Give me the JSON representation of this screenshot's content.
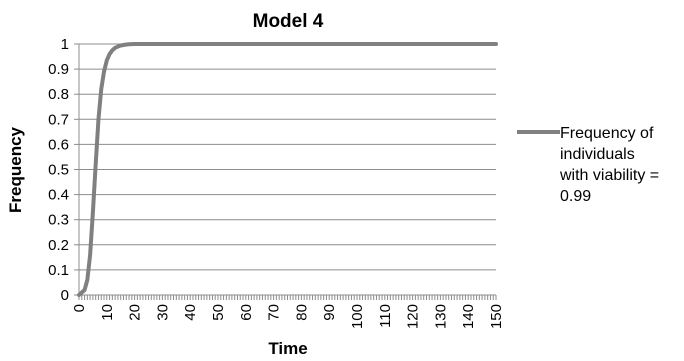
{
  "chart_data": {
    "type": "line",
    "title": "Model 4",
    "xlabel": "Time",
    "ylabel": "Frequency",
    "xlim": [
      0,
      150
    ],
    "ylim": [
      0,
      1
    ],
    "x_ticks": [
      "0",
      "10",
      "20",
      "30",
      "40",
      "50",
      "60",
      "70",
      "80",
      "90",
      "100",
      "110",
      "120",
      "130",
      "140",
      "150"
    ],
    "y_ticks": [
      "0",
      "0.1",
      "0.2",
      "0.3",
      "0.4",
      "0.5",
      "0.6",
      "0.7",
      "0.8",
      "0.9",
      "1"
    ],
    "grid": "horizontal",
    "legend_position": "right",
    "series": [
      {
        "name": "Frequency of individuals with viability = 0.99",
        "legend_lines": [
          "Frequency of",
          "individuals",
          "with viability =",
          "0.99"
        ],
        "color": "#808080",
        "x": [
          0,
          1,
          2,
          3,
          4,
          5,
          6,
          7,
          8,
          9,
          10,
          11,
          12,
          13,
          14,
          15,
          16,
          17,
          18,
          20,
          22,
          25,
          30,
          40,
          60,
          80,
          100,
          120,
          150
        ],
        "y": [
          0.0,
          0.01,
          0.02,
          0.06,
          0.16,
          0.33,
          0.52,
          0.7,
          0.82,
          0.89,
          0.935,
          0.96,
          0.975,
          0.985,
          0.99,
          0.994,
          0.996,
          0.998,
          0.999,
          1.0,
          1.0,
          1.0,
          1.0,
          1.0,
          1.0,
          1.0,
          1.0,
          1.0,
          1.0
        ]
      }
    ]
  }
}
